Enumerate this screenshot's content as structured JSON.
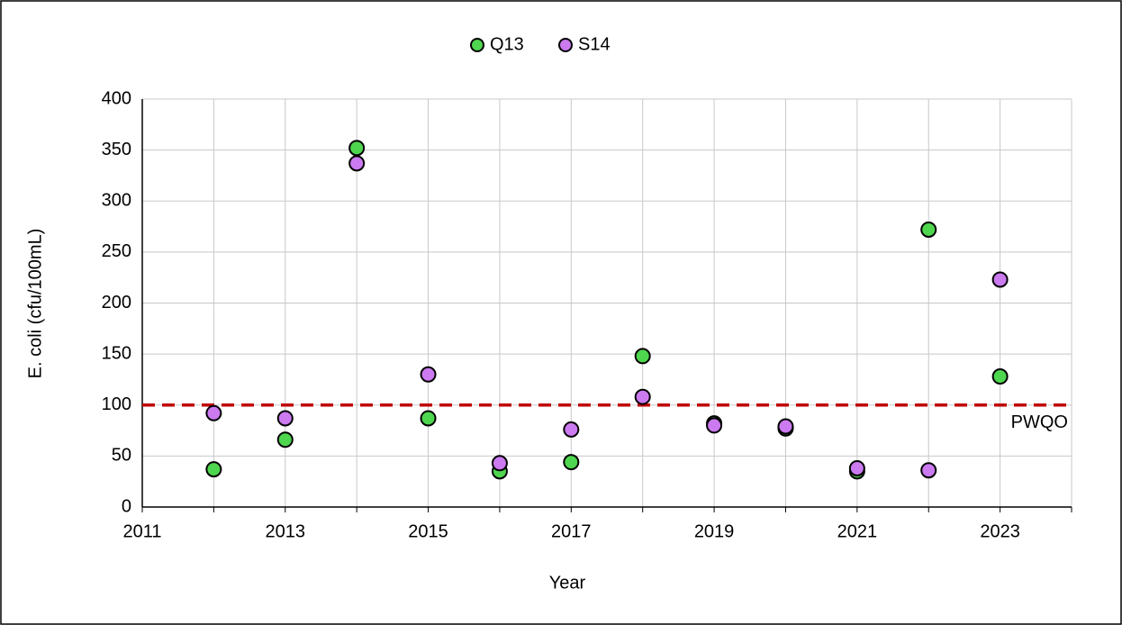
{
  "chart_data": {
    "type": "scatter",
    "x_label": "Year",
    "y_label": "E. coli (cfu/100mL)",
    "series": [
      {
        "name": "Q13",
        "color": "#4fd64f",
        "x": [
          2012,
          2013,
          2014,
          2015,
          2016,
          2017,
          2018,
          2019,
          2020,
          2021,
          2022,
          2023
        ],
        "values": [
          37,
          66,
          352,
          87,
          35,
          44,
          148,
          82,
          77,
          35,
          272,
          128
        ]
      },
      {
        "name": "S14",
        "color": "#cc7af0",
        "x": [
          2012,
          2013,
          2014,
          2015,
          2016,
          2017,
          2018,
          2019,
          2020,
          2021,
          2022,
          2023
        ],
        "values": [
          92,
          87,
          337,
          130,
          43,
          76,
          108,
          80,
          79,
          38,
          36,
          223
        ]
      }
    ],
    "reference_line": {
      "label": "PWQO",
      "value": 100,
      "color": "#c00000"
    },
    "xlim": [
      2011,
      2024
    ],
    "xticks": [
      2011,
      2013,
      2015,
      2017,
      2019,
      2021,
      2023
    ],
    "xminorticks": [
      2012,
      2014,
      2016,
      2018,
      2020,
      2022,
      2024
    ],
    "ylim": [
      0,
      400
    ],
    "yticks": [
      0,
      50,
      100,
      150,
      200,
      250,
      300,
      350,
      400
    ],
    "grid": true,
    "legend": "top"
  }
}
